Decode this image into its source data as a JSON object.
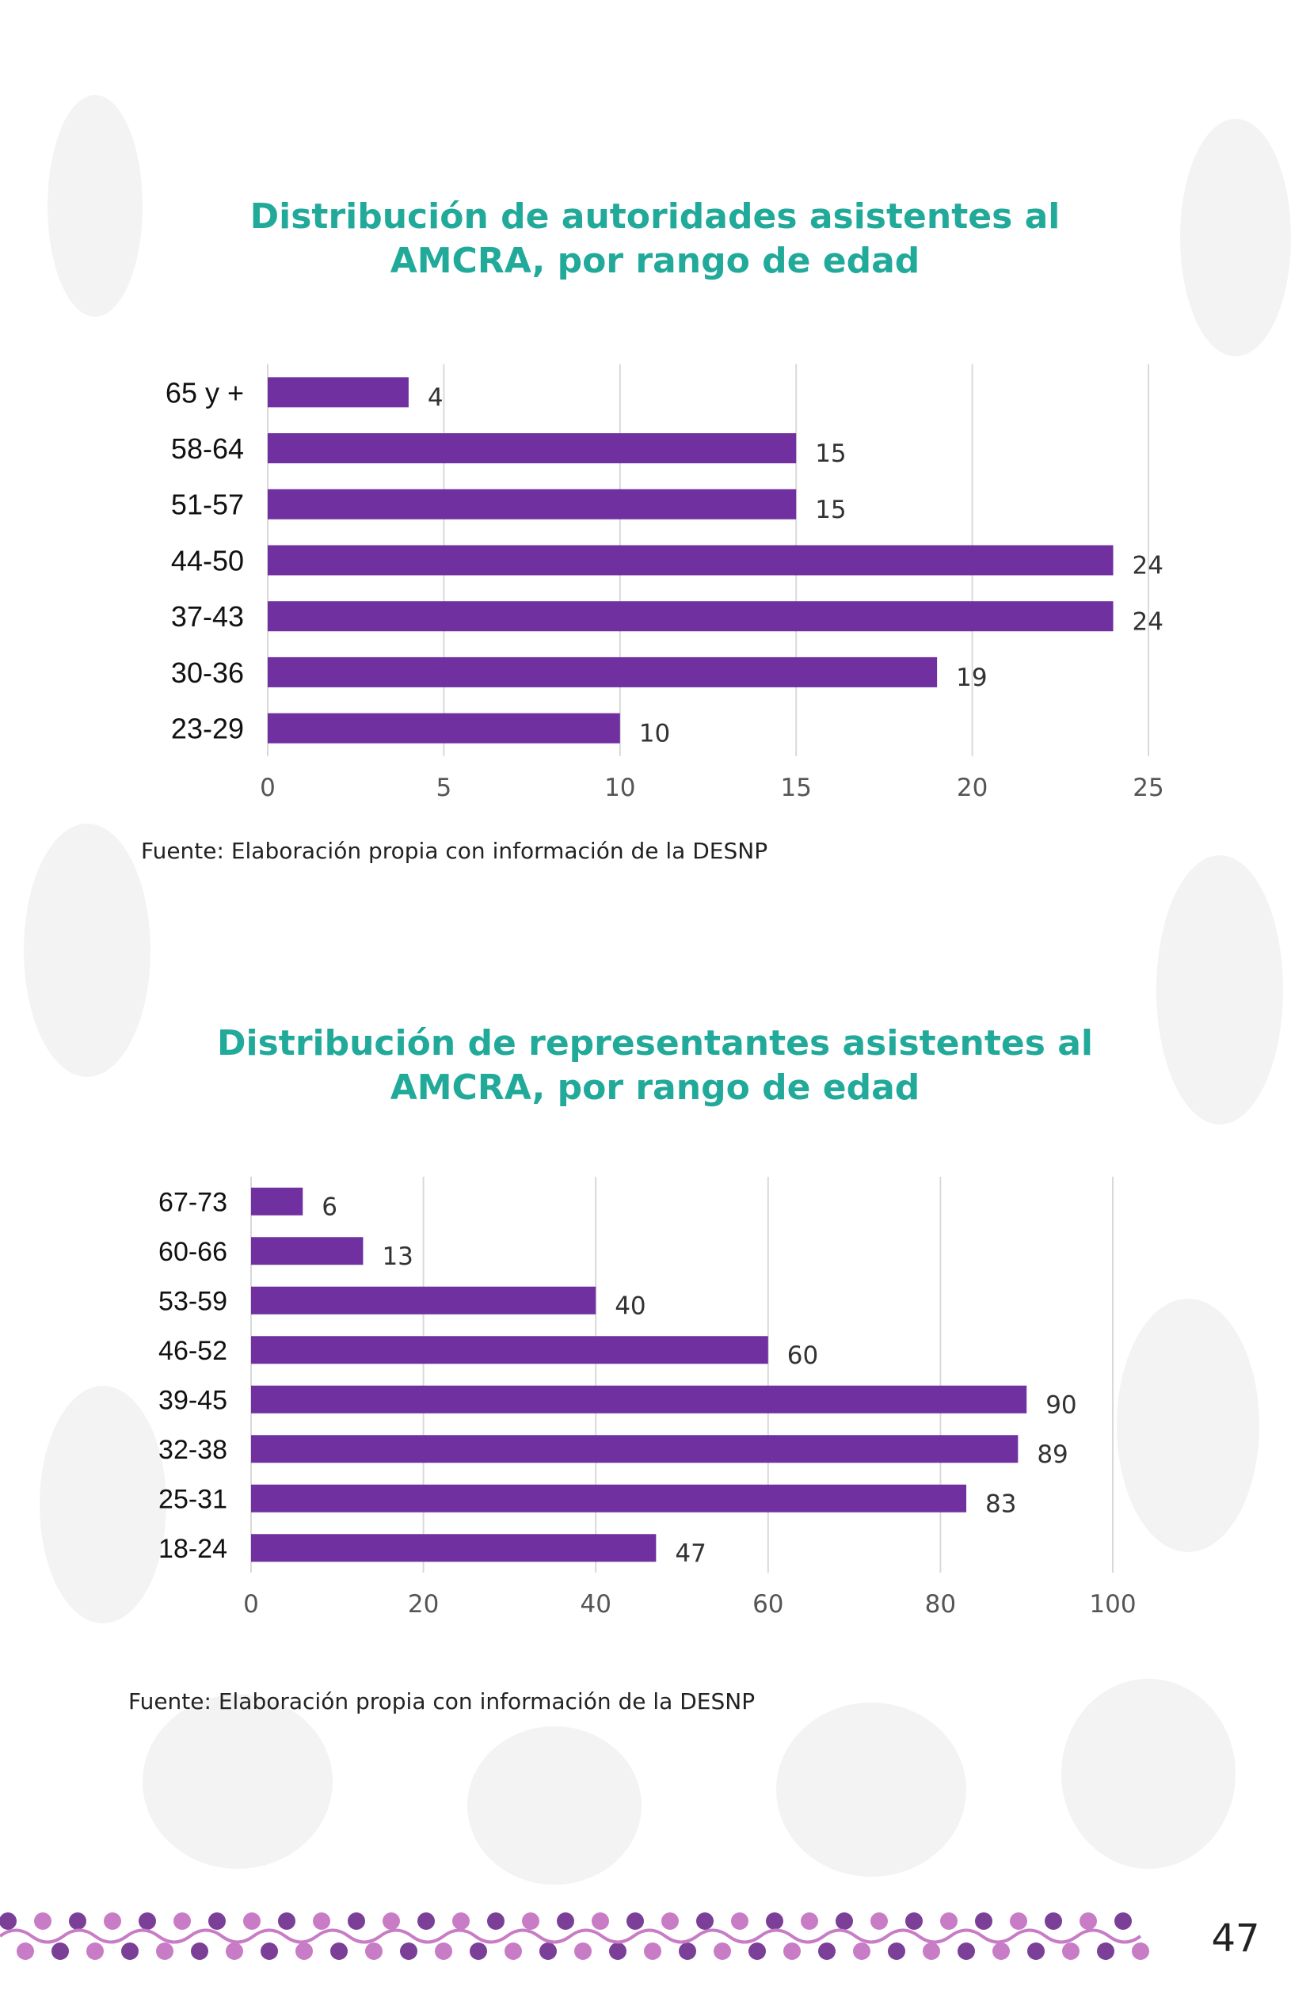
{
  "colors": {
    "title": "#21A99A",
    "bar": "#7030A0",
    "grid": "#D9D9D9",
    "tick_text": "#555555",
    "category_text": "#111111",
    "decoration": "#EEEEEE",
    "border_purple": "#7B3F98",
    "border_pink": "#C87CC6"
  },
  "chart_data": [
    {
      "type": "bar",
      "orientation": "horizontal",
      "title": "Distribución de autoridades asistentes al AMCRA, por rango de edad",
      "title_lines": [
        "Distribución de autoridades asistentes al",
        "AMCRA, por rango de edad"
      ],
      "categories": [
        "65 y +",
        "58-64",
        "51-57",
        "44-50",
        "37-43",
        "30-36",
        "23-29"
      ],
      "values": [
        4,
        15,
        15,
        24,
        24,
        19,
        10
      ],
      "xlim": [
        0,
        25
      ],
      "xticks": [
        0,
        5,
        10,
        15,
        20,
        25
      ],
      "data_labels": true,
      "grid": "vertical",
      "xlabel": "",
      "ylabel": "",
      "source": "Fuente: Elaboración propia con información de la DESNP"
    },
    {
      "type": "bar",
      "orientation": "horizontal",
      "title": "Distribución de representantes asistentes al AMCRA, por rango de edad",
      "title_lines": [
        "Distribución de representantes asistentes al",
        "AMCRA, por rango de edad"
      ],
      "categories": [
        "67-73",
        "60-66",
        "53-59",
        "46-52",
        "39-45",
        "32-38",
        "25-31",
        "18-24"
      ],
      "values": [
        6,
        13,
        40,
        60,
        90,
        89,
        83,
        47
      ],
      "xlim": [
        0,
        100
      ],
      "xticks": [
        0,
        20,
        40,
        60,
        80,
        100
      ],
      "data_labels": true,
      "grid": "vertical",
      "xlabel": "",
      "ylabel": "",
      "source": "Fuente: Elaboración propia con información de la DESNP"
    }
  ],
  "page": {
    "number": "47"
  }
}
